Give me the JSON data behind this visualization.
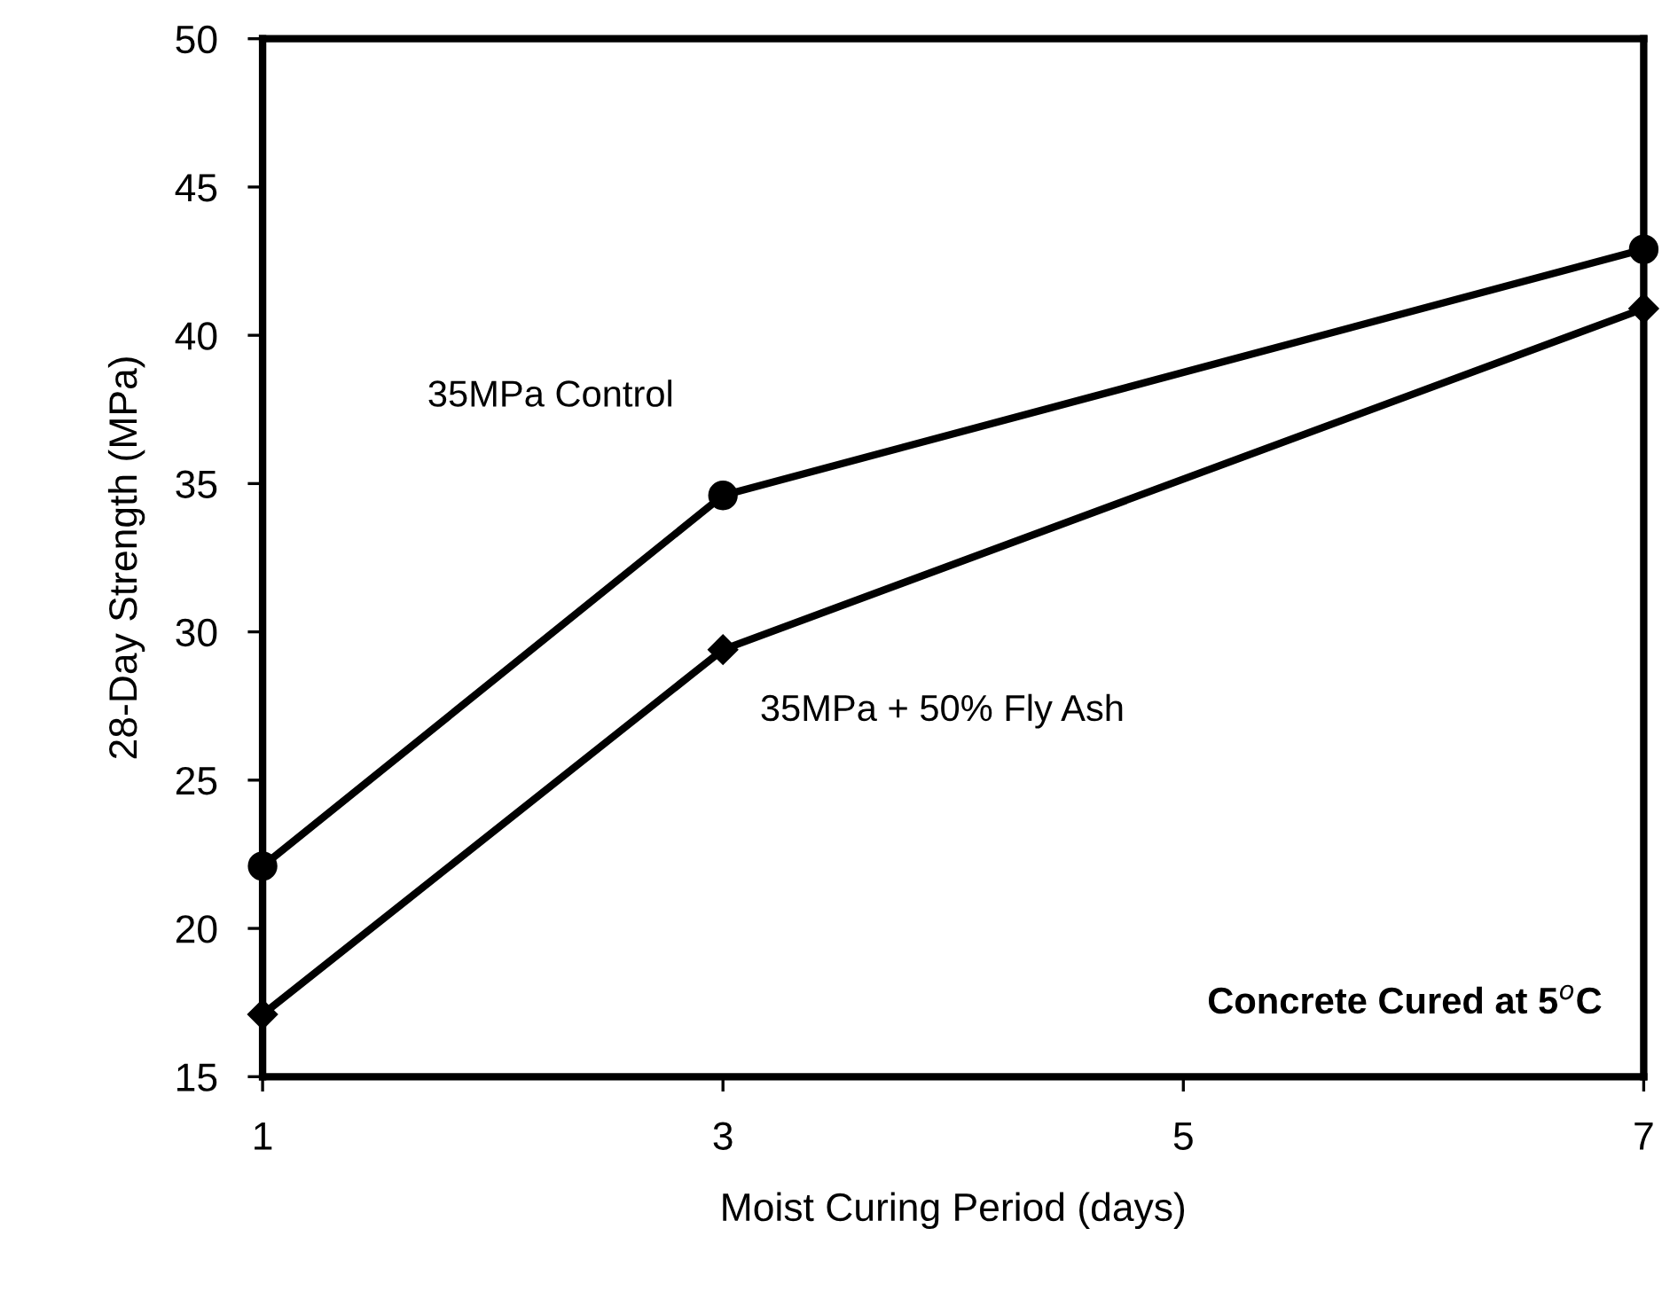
{
  "chart_data": {
    "type": "line",
    "xlabel": "Moist Curing Period (days)",
    "ylabel": "28-Day Strength (MPa)",
    "x": [
      1,
      3,
      7
    ],
    "series": [
      {
        "name": "35MPa Control",
        "color": "#000000",
        "values": [
          22.1,
          34.6,
          42.9
        ],
        "marker": "circle"
      },
      {
        "name": "35MPa + 50% Fly Ash",
        "color": "#000000",
        "values": [
          17.1,
          29.4,
          40.9
        ],
        "marker": "diamond"
      }
    ],
    "xlim": [
      1,
      7
    ],
    "xticks": [
      1,
      3,
      5,
      7
    ],
    "ylim": [
      15,
      50
    ],
    "yticks": [
      15,
      20,
      25,
      30,
      35,
      40,
      45,
      50
    ],
    "annotations": [
      "Concrete Cured at 5$^{o}$C"
    ],
    "grid": false,
    "legend": false,
    "line_style": "solid"
  }
}
